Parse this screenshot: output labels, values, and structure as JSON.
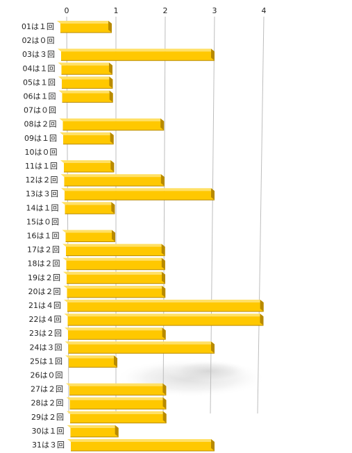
{
  "chart_data": {
    "type": "bar",
    "orientation": "horizontal",
    "style": "3d",
    "xlim": [
      0,
      4
    ],
    "x_ticks": [
      "0",
      "1",
      "2",
      "3",
      "4"
    ],
    "grid": true,
    "categories": [
      "01は１回",
      "02は０回",
      "03は３回",
      "04は１回",
      "05は１回",
      "06は１回",
      "07は０回",
      "08は２回",
      "09は１回",
      "10は０回",
      "11は１回",
      "12は２回",
      "13は３回",
      "14は１回",
      "15は０回",
      "16は１回",
      "17は２回",
      "18は２回",
      "19は２回",
      "20は２回",
      "21は４回",
      "22は４回",
      "23は２回",
      "24は３回",
      "25は１回",
      "26は０回",
      "27は２回",
      "28は２回",
      "29は２回",
      "30は１回",
      "31は３回"
    ],
    "values": [
      1,
      0,
      3,
      1,
      1,
      1,
      0,
      2,
      1,
      0,
      1,
      2,
      3,
      1,
      0,
      1,
      2,
      2,
      2,
      2,
      4,
      4,
      2,
      3,
      1,
      0,
      2,
      2,
      2,
      1,
      3
    ],
    "colors": {
      "bar": "#ffc800",
      "bar_top": "#ffe066",
      "bar_side": "#b88a00",
      "grid": "#bdbdbd"
    }
  }
}
